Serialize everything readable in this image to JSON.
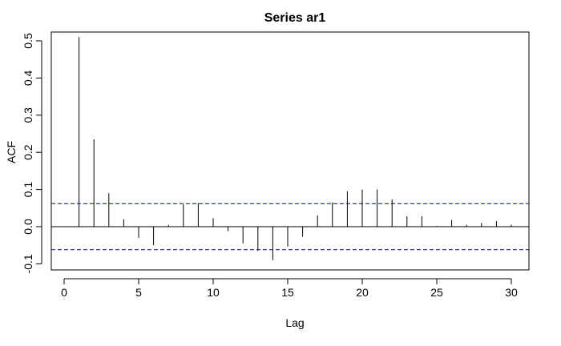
{
  "chart_data": {
    "type": "bar",
    "title": "Series ar1",
    "xlabel": "Lag",
    "ylabel": "ACF",
    "xlim": [
      0,
      31
    ],
    "ylim": [
      -0.1,
      0.5
    ],
    "x_ticks": [
      0,
      5,
      10,
      15,
      20,
      25,
      30
    ],
    "y_ticks": [
      -0.1,
      0.0,
      0.1,
      0.2,
      0.3,
      0.4,
      0.5
    ],
    "y_tick_labels": [
      "-0.1",
      "0.0",
      "0.1",
      "0.2",
      "0.3",
      "0.4",
      "0.5"
    ],
    "lags": [
      1,
      2,
      3,
      4,
      5,
      6,
      7,
      8,
      9,
      10,
      11,
      12,
      13,
      14,
      15,
      16,
      17,
      18,
      19,
      20,
      21,
      22,
      23,
      24,
      25,
      26,
      27,
      28,
      29,
      30
    ],
    "acf": [
      0.51,
      0.235,
      0.09,
      0.02,
      -0.03,
      -0.05,
      0.005,
      0.06,
      0.063,
      0.023,
      -0.012,
      -0.045,
      -0.065,
      -0.09,
      -0.053,
      -0.027,
      0.03,
      0.065,
      0.095,
      0.1,
      0.1,
      0.073,
      0.028,
      0.028,
      0.002,
      0.018,
      0.005,
      0.01,
      0.015,
      0.005
    ],
    "confidence_bounds": [
      0.062,
      -0.062
    ],
    "colors": {
      "bars": "#000000",
      "bounds": "#0000cc",
      "zero_line": "#000000"
    },
    "grid": false
  }
}
